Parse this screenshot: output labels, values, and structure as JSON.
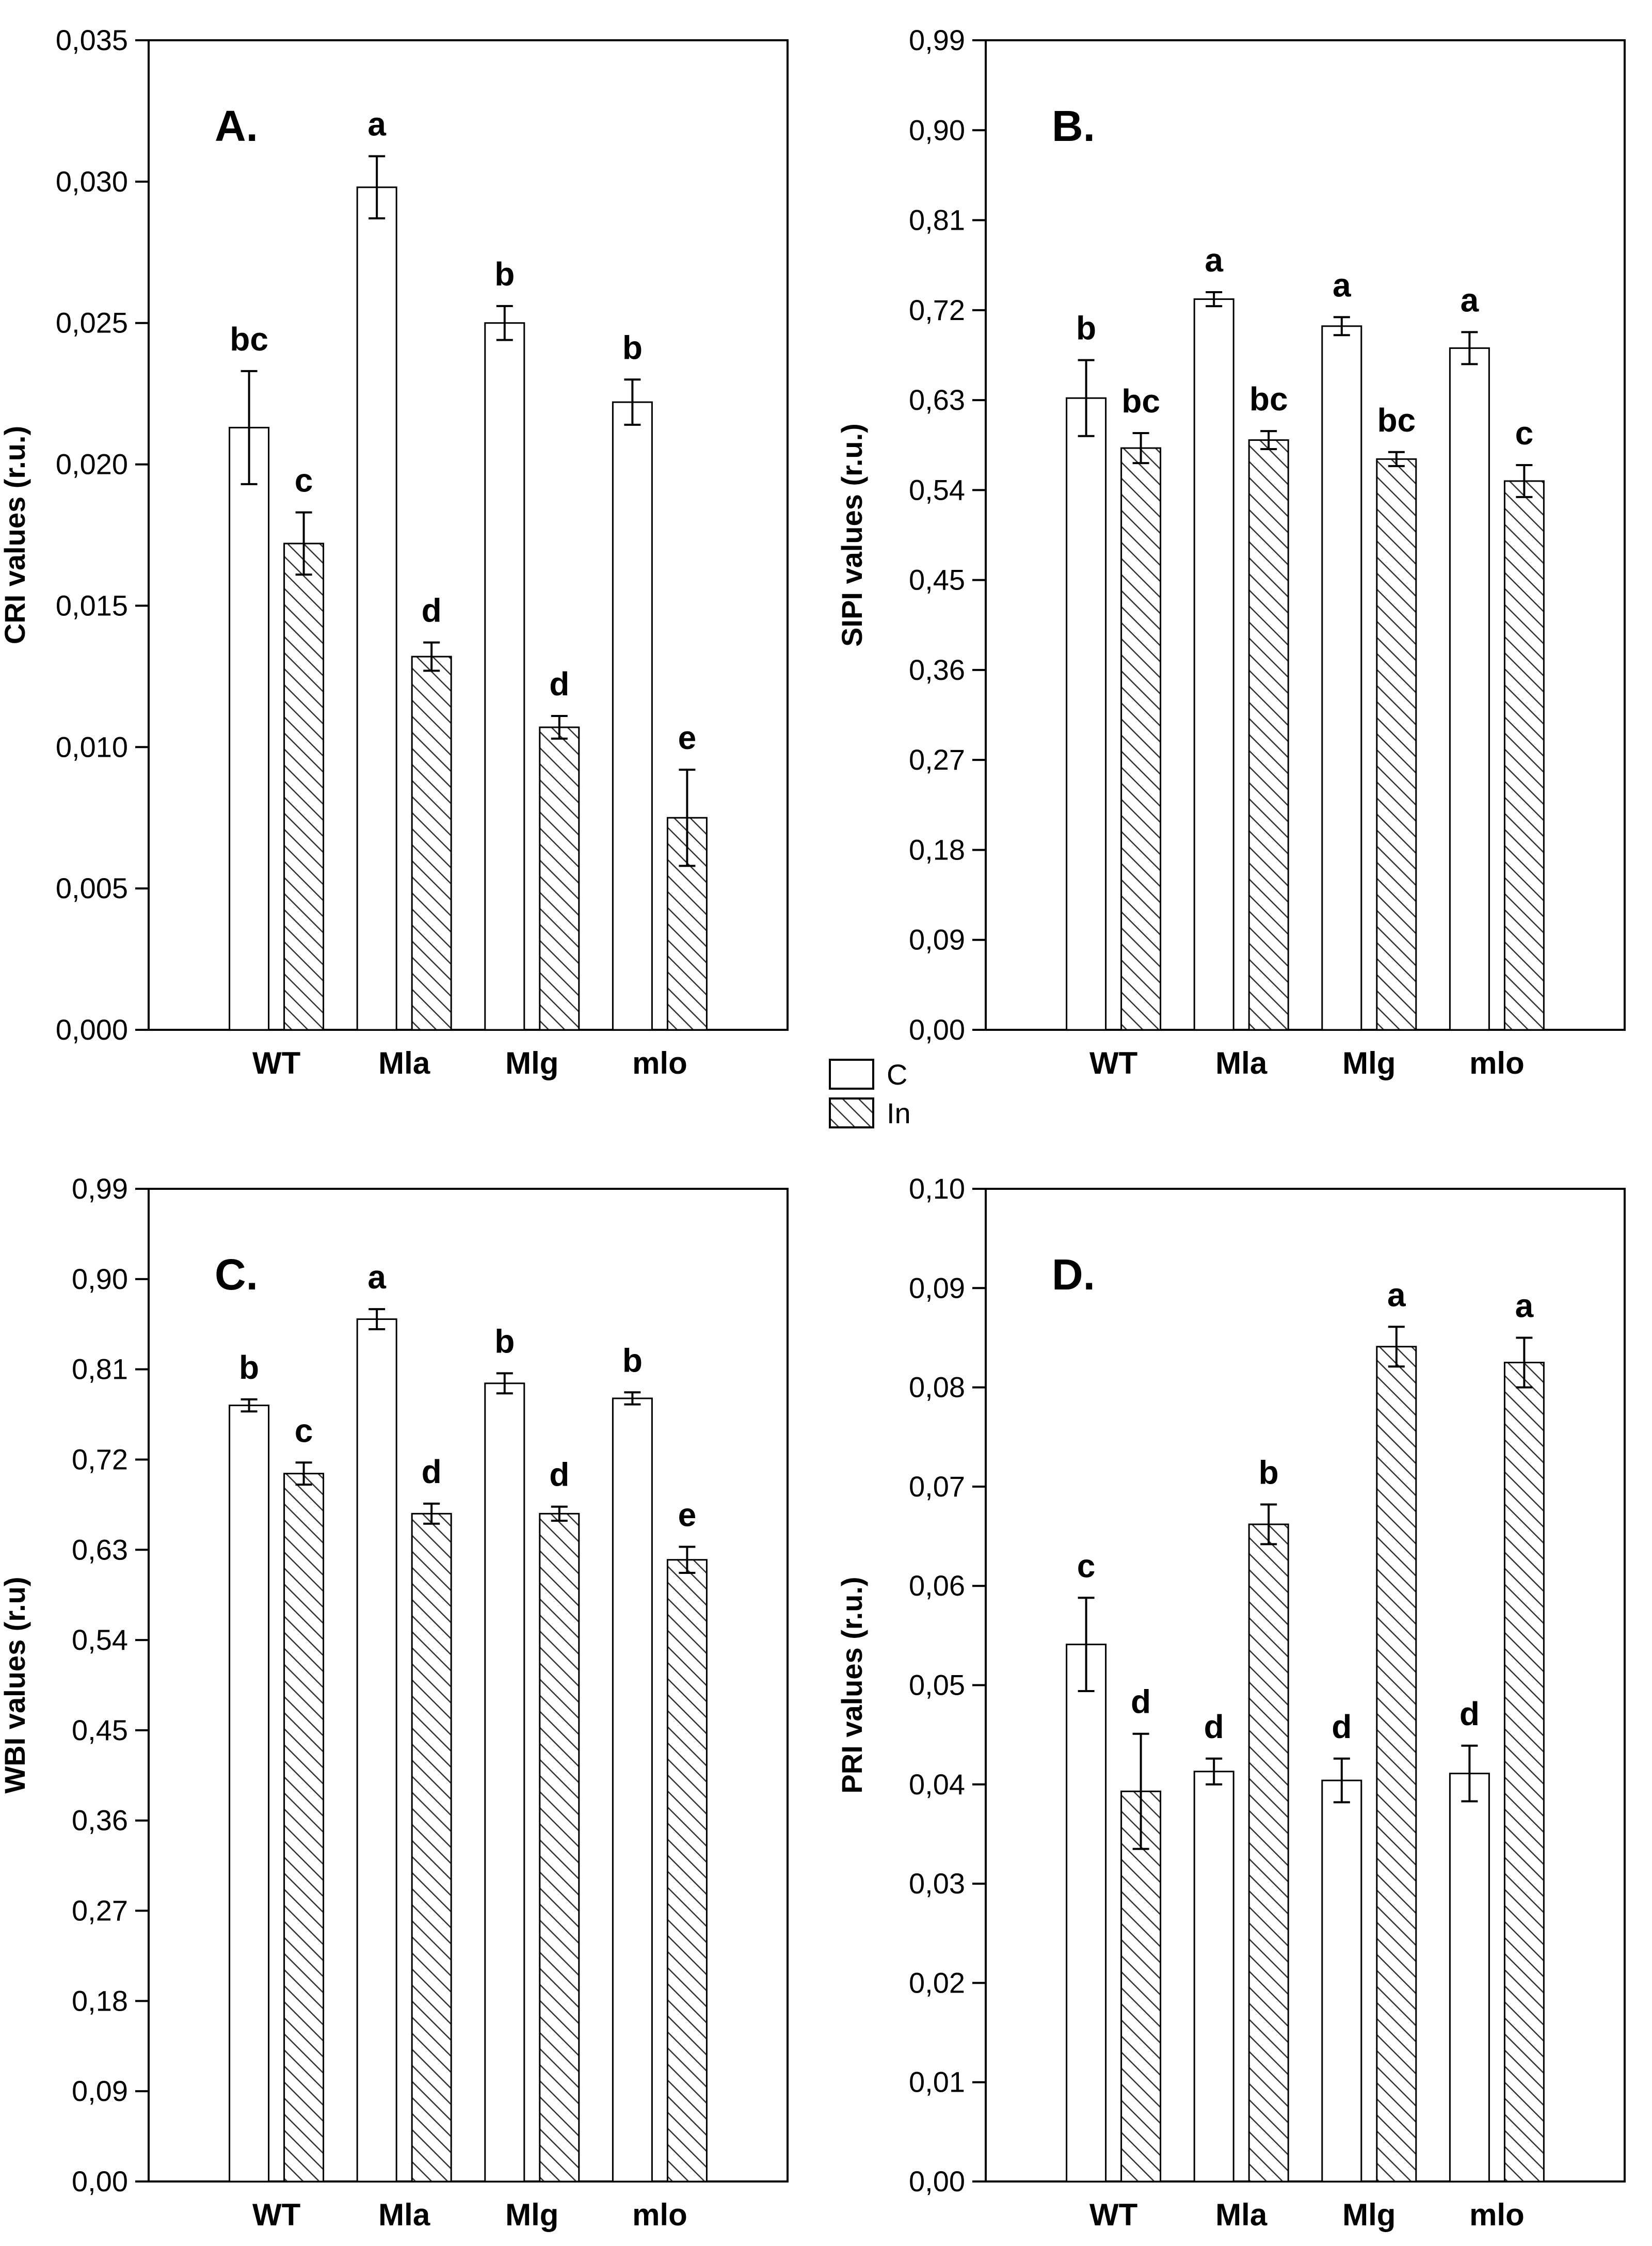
{
  "legend": {
    "control_label": "C",
    "infected_label": "In"
  },
  "chart_data": [
    {
      "type": "bar",
      "panel": "A.",
      "ylabel": "CRI values (r.u.)",
      "ylim": [
        0,
        0.035
      ],
      "yticks": [
        "0,000",
        "0,005",
        "0,010",
        "0,015",
        "0,020",
        "0,025",
        "0,030",
        "0,035"
      ],
      "categories": [
        "WT",
        "Mla",
        "Mlg",
        "mlo"
      ],
      "series": [
        {
          "name": "C",
          "pattern": "none",
          "values": [
            0.0213,
            0.0298,
            0.025,
            0.0222
          ],
          "errors": [
            0.002,
            0.0011,
            0.0006,
            0.0008
          ],
          "labels": [
            "bc",
            "a",
            "b",
            "b"
          ]
        },
        {
          "name": "In",
          "pattern": "hatched",
          "values": [
            0.0172,
            0.0132,
            0.0107,
            0.0075
          ],
          "errors": [
            0.0011,
            0.0005,
            0.0004,
            0.0017
          ],
          "labels": [
            "c",
            "d",
            "d",
            "e"
          ]
        }
      ]
    },
    {
      "type": "bar",
      "panel": "B.",
      "ylabel": "SIPI values (r.u.)",
      "ylim": [
        0,
        0.99
      ],
      "yticks": [
        "0,00",
        "0,09",
        "0,18",
        "0,27",
        "0,36",
        "0,45",
        "0,54",
        "0,63",
        "0,72",
        "0,81",
        "0,90",
        "0,99"
      ],
      "categories": [
        "WT",
        "Mla",
        "Mlg",
        "mlo"
      ],
      "series": [
        {
          "name": "C",
          "pattern": "none",
          "values": [
            0.632,
            0.731,
            0.704,
            0.682
          ],
          "errors": [
            0.038,
            0.007,
            0.009,
            0.016
          ],
          "labels": [
            "b",
            "a",
            "a",
            "a"
          ]
        },
        {
          "name": "In",
          "pattern": "hatched",
          "values": [
            0.582,
            0.59,
            0.571,
            0.549
          ],
          "errors": [
            0.015,
            0.009,
            0.007,
            0.016
          ],
          "labels": [
            "bc",
            "bc",
            "bc",
            "c"
          ]
        }
      ]
    },
    {
      "type": "bar",
      "panel": "C.",
      "ylabel": "WBI values (r.u)",
      "ylim": [
        0,
        0.99
      ],
      "yticks": [
        "0,00",
        "0,09",
        "0,18",
        "0,27",
        "0,36",
        "0,45",
        "0,54",
        "0,63",
        "0,72",
        "0,81",
        "0,90",
        "0,99"
      ],
      "categories": [
        "WT",
        "Mla",
        "Mlg",
        "mlo"
      ],
      "series": [
        {
          "name": "C",
          "pattern": "none",
          "values": [
            0.774,
            0.86,
            0.796,
            0.781
          ],
          "errors": [
            0.006,
            0.01,
            0.01,
            0.006
          ],
          "labels": [
            "b",
            "a",
            "b",
            "b"
          ]
        },
        {
          "name": "In",
          "pattern": "hatched",
          "values": [
            0.706,
            0.666,
            0.666,
            0.62
          ],
          "errors": [
            0.011,
            0.01,
            0.007,
            0.013
          ],
          "labels": [
            "c",
            "d",
            "d",
            "e"
          ]
        }
      ]
    },
    {
      "type": "bar",
      "panel": "D.",
      "ylabel": "PRI values (r.u.)",
      "ylim": [
        0,
        0.1
      ],
      "yticks": [
        "0,00",
        "0,01",
        "0,02",
        "0,03",
        "0,04",
        "0,05",
        "0,06",
        "0,07",
        "0,08",
        "0,09",
        "0,10"
      ],
      "categories": [
        "WT",
        "Mla",
        "Mlg",
        "mlo"
      ],
      "series": [
        {
          "name": "C",
          "pattern": "none",
          "values": [
            0.0541,
            0.0413,
            0.0404,
            0.0411
          ],
          "errors": [
            0.0047,
            0.0013,
            0.0022,
            0.0028
          ],
          "labels": [
            "c",
            "d",
            "d",
            "d"
          ]
        },
        {
          "name": "In",
          "pattern": "hatched",
          "values": [
            0.0393,
            0.0662,
            0.0841,
            0.0825
          ],
          "errors": [
            0.0058,
            0.002,
            0.002,
            0.0025
          ],
          "labels": [
            "d",
            "b",
            "a",
            "a"
          ]
        }
      ]
    }
  ]
}
